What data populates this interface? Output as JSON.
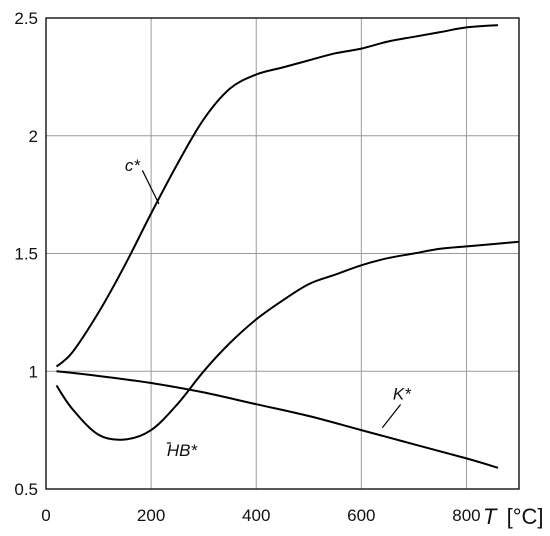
{
  "chart_data": {
    "type": "line",
    "xlabel_var": "T",
    "xlabel_unit": "[°C]",
    "xlim": [
      0,
      900
    ],
    "ylim": [
      0.5,
      2.5
    ],
    "xticks": [
      0,
      200,
      400,
      600,
      800
    ],
    "xtick_labels": [
      "0",
      "200",
      "400",
      "600",
      "800"
    ],
    "yticks": [
      0.5,
      1,
      1.5,
      2,
      2.5
    ],
    "ytick_labels": [
      "0.5",
      "1",
      "1.5",
      "2",
      "2.5"
    ],
    "grid": true,
    "series": [
      {
        "name": "c*",
        "label_at": [
          150,
          1.85
        ],
        "leader_to": [
          215,
          1.71
        ],
        "x": [
          20,
          50,
          100,
          150,
          200,
          250,
          300,
          350,
          400,
          450,
          500,
          550,
          600,
          650,
          700,
          750,
          800,
          860
        ],
        "y": [
          1.02,
          1.08,
          1.25,
          1.45,
          1.67,
          1.88,
          2.07,
          2.2,
          2.26,
          2.29,
          2.32,
          2.35,
          2.37,
          2.4,
          2.42,
          2.44,
          2.46,
          2.47
        ]
      },
      {
        "name": "HB*",
        "label_at": [
          230,
          0.64
        ],
        "leader_to": [
          230,
          0.695
        ],
        "x": [
          20,
          50,
          100,
          150,
          200,
          250,
          300,
          350,
          400,
          450,
          500,
          550,
          600,
          650,
          700,
          750,
          800,
          850,
          900
        ],
        "y": [
          0.94,
          0.84,
          0.73,
          0.71,
          0.75,
          0.86,
          1.0,
          1.12,
          1.22,
          1.3,
          1.37,
          1.41,
          1.45,
          1.48,
          1.5,
          1.52,
          1.53,
          1.54,
          1.55
        ]
      },
      {
        "name": "K*",
        "label_at": [
          660,
          0.88
        ],
        "leader_to": [
          640,
          0.76
        ],
        "x": [
          20,
          100,
          200,
          300,
          400,
          500,
          600,
          700,
          800,
          860
        ],
        "y": [
          1.0,
          0.98,
          0.95,
          0.91,
          0.86,
          0.81,
          0.75,
          0.69,
          0.63,
          0.59
        ]
      }
    ]
  }
}
